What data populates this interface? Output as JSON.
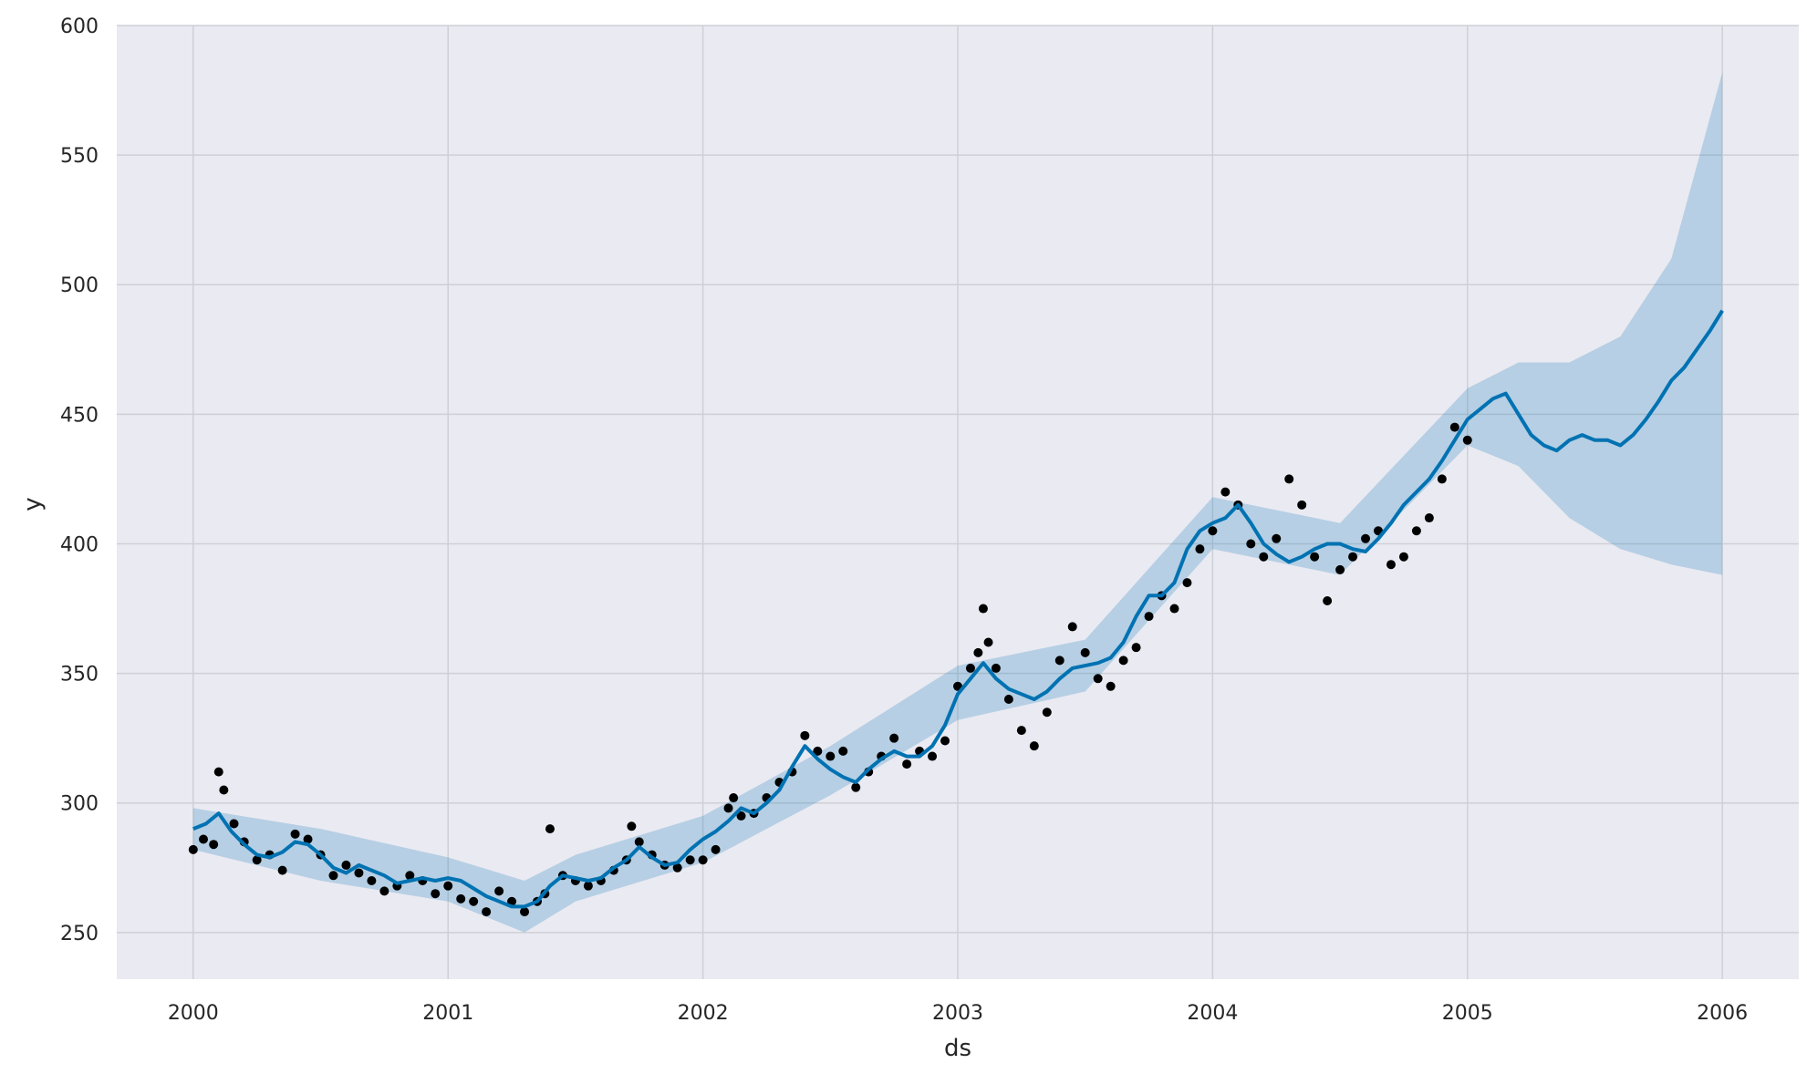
{
  "chart_data": {
    "type": "line",
    "title": "",
    "xlabel": "ds",
    "ylabel": "y",
    "xlim": [
      1999.7,
      2006.3
    ],
    "ylim": [
      232,
      600
    ],
    "x_ticks": [
      2000,
      2001,
      2002,
      2003,
      2004,
      2005,
      2006
    ],
    "x_tick_labels": [
      "2000",
      "2001",
      "2002",
      "2003",
      "2004",
      "2005",
      "2006"
    ],
    "y_ticks": [
      250,
      300,
      350,
      400,
      450,
      500,
      550,
      600
    ],
    "y_tick_labels": [
      "250",
      "300",
      "350",
      "400",
      "450",
      "500",
      "550",
      "600"
    ],
    "grid": true,
    "legend": "none",
    "colors": {
      "background": "#eaeaf2",
      "grid": "#cfd0d6",
      "points": "#000000",
      "forecast": "#0072b2",
      "band": "#0072b2"
    },
    "series": [
      {
        "kind": "observed-points",
        "x": [
          2000.0,
          2000.04,
          2000.08,
          2000.1,
          2000.12,
          2000.16,
          2000.2,
          2000.25,
          2000.3,
          2000.35,
          2000.4,
          2000.45,
          2000.5,
          2000.55,
          2000.6,
          2000.65,
          2000.7,
          2000.75,
          2000.8,
          2000.85,
          2000.9,
          2000.95,
          2001.0,
          2001.05,
          2001.1,
          2001.15,
          2001.2,
          2001.25,
          2001.3,
          2001.35,
          2001.38,
          2001.4,
          2001.45,
          2001.5,
          2001.55,
          2001.6,
          2001.65,
          2001.7,
          2001.72,
          2001.75,
          2001.8,
          2001.85,
          2001.9,
          2001.95,
          2002.0,
          2002.05,
          2002.1,
          2002.12,
          2002.15,
          2002.2,
          2002.25,
          2002.3,
          2002.35,
          2002.4,
          2002.45,
          2002.5,
          2002.55,
          2002.6,
          2002.65,
          2002.7,
          2002.75,
          2002.8,
          2002.85,
          2002.9,
          2002.95,
          2003.0,
          2003.05,
          2003.08,
          2003.1,
          2003.12,
          2003.15,
          2003.2,
          2003.25,
          2003.3,
          2003.35,
          2003.4,
          2003.45,
          2003.5,
          2003.55,
          2003.6,
          2003.65,
          2003.7,
          2003.75,
          2003.8,
          2003.85,
          2003.9,
          2003.95,
          2004.0,
          2004.05,
          2004.1,
          2004.15,
          2004.2,
          2004.25,
          2004.3,
          2004.35,
          2004.4,
          2004.45,
          2004.5,
          2004.55,
          2004.6,
          2004.65,
          2004.7,
          2004.75,
          2004.8,
          2004.85,
          2004.9,
          2004.95,
          2005.0
        ],
        "y": [
          282,
          286,
          284,
          312,
          305,
          292,
          285,
          278,
          280,
          274,
          288,
          286,
          280,
          272,
          276,
          273,
          270,
          266,
          268,
          272,
          270,
          265,
          268,
          263,
          262,
          258,
          266,
          262,
          258,
          262,
          265,
          290,
          272,
          270,
          268,
          270,
          274,
          278,
          291,
          285,
          280,
          276,
          275,
          278,
          278,
          282,
          298,
          302,
          295,
          296,
          302,
          308,
          312,
          326,
          320,
          318,
          320,
          306,
          312,
          318,
          325,
          315,
          320,
          318,
          324,
          345,
          352,
          358,
          375,
          362,
          352,
          340,
          328,
          322,
          335,
          355,
          368,
          358,
          348,
          345,
          355,
          360,
          372,
          380,
          375,
          385,
          398,
          405,
          420,
          415,
          400,
          395,
          402,
          425,
          415,
          395,
          378,
          390,
          395,
          402,
          405,
          392,
          395,
          405,
          410,
          425,
          445,
          440
        ]
      },
      {
        "kind": "forecast-line",
        "x": [
          2000.0,
          2000.05,
          2000.1,
          2000.15,
          2000.2,
          2000.25,
          2000.3,
          2000.35,
          2000.4,
          2000.45,
          2000.5,
          2000.55,
          2000.6,
          2000.65,
          2000.7,
          2000.75,
          2000.8,
          2000.85,
          2000.9,
          2000.95,
          2001.0,
          2001.05,
          2001.1,
          2001.15,
          2001.2,
          2001.25,
          2001.3,
          2001.35,
          2001.4,
          2001.45,
          2001.5,
          2001.55,
          2001.6,
          2001.65,
          2001.7,
          2001.75,
          2001.8,
          2001.85,
          2001.9,
          2001.95,
          2002.0,
          2002.05,
          2002.1,
          2002.15,
          2002.2,
          2002.25,
          2002.3,
          2002.35,
          2002.4,
          2002.45,
          2002.5,
          2002.55,
          2002.6,
          2002.65,
          2002.7,
          2002.75,
          2002.8,
          2002.85,
          2002.9,
          2002.95,
          2003.0,
          2003.05,
          2003.1,
          2003.15,
          2003.2,
          2003.25,
          2003.3,
          2003.35,
          2003.4,
          2003.45,
          2003.5,
          2003.55,
          2003.6,
          2003.65,
          2003.7,
          2003.75,
          2003.8,
          2003.85,
          2003.9,
          2003.95,
          2004.0,
          2004.05,
          2004.1,
          2004.15,
          2004.2,
          2004.25,
          2004.3,
          2004.35,
          2004.4,
          2004.45,
          2004.5,
          2004.55,
          2004.6,
          2004.65,
          2004.7,
          2004.75,
          2004.8,
          2004.85,
          2004.9,
          2004.95,
          2005.0,
          2005.05,
          2005.1,
          2005.15,
          2005.2,
          2005.25,
          2005.3,
          2005.35,
          2005.4,
          2005.45,
          2005.5,
          2005.55,
          2005.6,
          2005.65,
          2005.7,
          2005.75,
          2005.8,
          2005.85,
          2005.9,
          2005.95,
          2006.0
        ],
        "y": [
          290,
          292,
          296,
          289,
          284,
          280,
          279,
          281,
          285,
          284,
          280,
          275,
          273,
          276,
          274,
          272,
          269,
          270,
          271,
          270,
          271,
          270,
          267,
          264,
          262,
          260,
          260,
          262,
          268,
          272,
          271,
          270,
          271,
          275,
          278,
          283,
          279,
          276,
          277,
          282,
          286,
          289,
          293,
          298,
          296,
          300,
          305,
          314,
          322,
          317,
          313,
          310,
          308,
          313,
          317,
          320,
          318,
          318,
          322,
          330,
          342,
          348,
          354,
          348,
          344,
          342,
          340,
          343,
          348,
          352,
          353,
          354,
          356,
          362,
          372,
          380,
          380,
          385,
          398,
          405,
          408,
          410,
          415,
          408,
          400,
          396,
          393,
          395,
          398,
          400,
          400,
          398,
          397,
          402,
          408,
          415,
          420,
          425,
          432,
          440,
          448,
          452,
          456,
          458,
          450,
          442,
          438,
          436,
          440,
          442,
          440,
          440,
          438,
          442,
          448,
          455,
          463,
          468,
          475,
          482,
          490
        ]
      },
      {
        "kind": "uncertainty-band",
        "x": [
          2000.0,
          2000.5,
          2001.0,
          2001.3,
          2001.5,
          2002.0,
          2002.5,
          2003.0,
          2003.5,
          2004.0,
          2004.5,
          2005.0,
          2005.2,
          2005.4,
          2005.6,
          2005.8,
          2006.0
        ],
        "y_upper": [
          298,
          290,
          279,
          270,
          280,
          295,
          322,
          353,
          363,
          418,
          408,
          460,
          470,
          470,
          480,
          510,
          582
        ],
        "y_lower": [
          282,
          270,
          262,
          250,
          262,
          277,
          303,
          332,
          343,
          398,
          388,
          438,
          430,
          410,
          398,
          392,
          388
        ]
      }
    ]
  }
}
